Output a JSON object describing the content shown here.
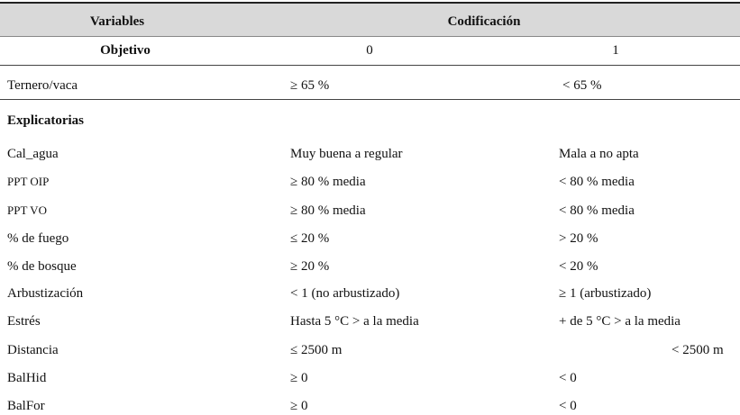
{
  "table": {
    "header": {
      "variables": "Variables",
      "codificacion": "Codificación"
    },
    "subheader": {
      "label": "Objetivo",
      "col0": "0",
      "col1": "1"
    },
    "objective_row": {
      "name": "Ternero/vaca",
      "v0": "≥ 65 %",
      "v1": "< 65 %"
    },
    "section_label": "Explicatorias",
    "rows": [
      {
        "name": "Cal_agua",
        "v0": "Muy buena a regular",
        "v1": "Mala a no apta"
      },
      {
        "name": "PPT OIP",
        "v0": "≥ 80 % media",
        "v1": "< 80 % media"
      },
      {
        "name": "PPT VO",
        "v0": "≥ 80 % media",
        "v1": "< 80 % media"
      },
      {
        "name": "% de fuego",
        "v0": "≤ 20 %",
        "v1": "> 20 %"
      },
      {
        "name": "% de bosque",
        "v0": "≥ 20 %",
        "v1": "< 20 %"
      },
      {
        "name": "Arbustización",
        "v0": "< 1 (no arbustizado)",
        "v1": "≥ 1 (arbustizado)"
      },
      {
        "name": "Estrés",
        "v0": "Hasta 5 °C > a la media",
        "v1": "+ de 5 °C > a la media"
      },
      {
        "name": "Distancia",
        "v0": "≤ 2500 m",
        "v1": "< 2500 m"
      },
      {
        "name": "BalHid",
        "v0": "≥ 0",
        "v1": "< 0"
      },
      {
        "name": "BalFor",
        "v0": "≥ 0",
        "v1": "< 0"
      }
    ]
  }
}
